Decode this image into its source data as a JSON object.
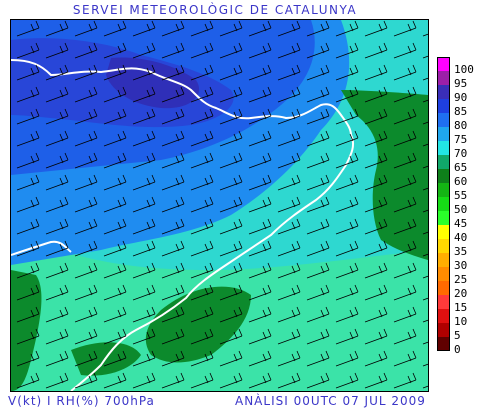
{
  "header": {
    "title": "SERVEI METEOROLÒGIC DE CATALUNYA"
  },
  "footer": {
    "left": "V(kt) I RH(%) 700hPa",
    "right": "ANÀLISI 00UTC 07 JUL 2009"
  },
  "legend": {
    "items": [
      {
        "label": "100",
        "color": "#ff00ff"
      },
      {
        "label": "95",
        "color": "#9c1fa8"
      },
      {
        "label": "90",
        "color": "#3a2eb8"
      },
      {
        "label": "85",
        "color": "#1e3fe0"
      },
      {
        "label": "80",
        "color": "#1f6ff0"
      },
      {
        "label": "75",
        "color": "#1fa6ee"
      },
      {
        "label": "70",
        "color": "#22e4e4"
      },
      {
        "label": "65",
        "color": "#10a86a"
      },
      {
        "label": "60",
        "color": "#0e7f1a"
      },
      {
        "label": "55",
        "color": "#14b414"
      },
      {
        "label": "50",
        "color": "#16dc16"
      },
      {
        "label": "45",
        "color": "#2aff2a"
      },
      {
        "label": "40",
        "color": "#ffff00"
      },
      {
        "label": "35",
        "color": "#ffd800"
      },
      {
        "label": "30",
        "color": "#ffae00"
      },
      {
        "label": "25",
        "color": "#ff8c00"
      },
      {
        "label": "20",
        "color": "#ff6a00"
      },
      {
        "label": "15",
        "color": "#ff3a3a"
      },
      {
        "label": "10",
        "color": "#e01010"
      },
      {
        "label": "5",
        "color": "#b00000"
      },
      {
        "label": "0",
        "color": "#600000"
      }
    ]
  }
}
